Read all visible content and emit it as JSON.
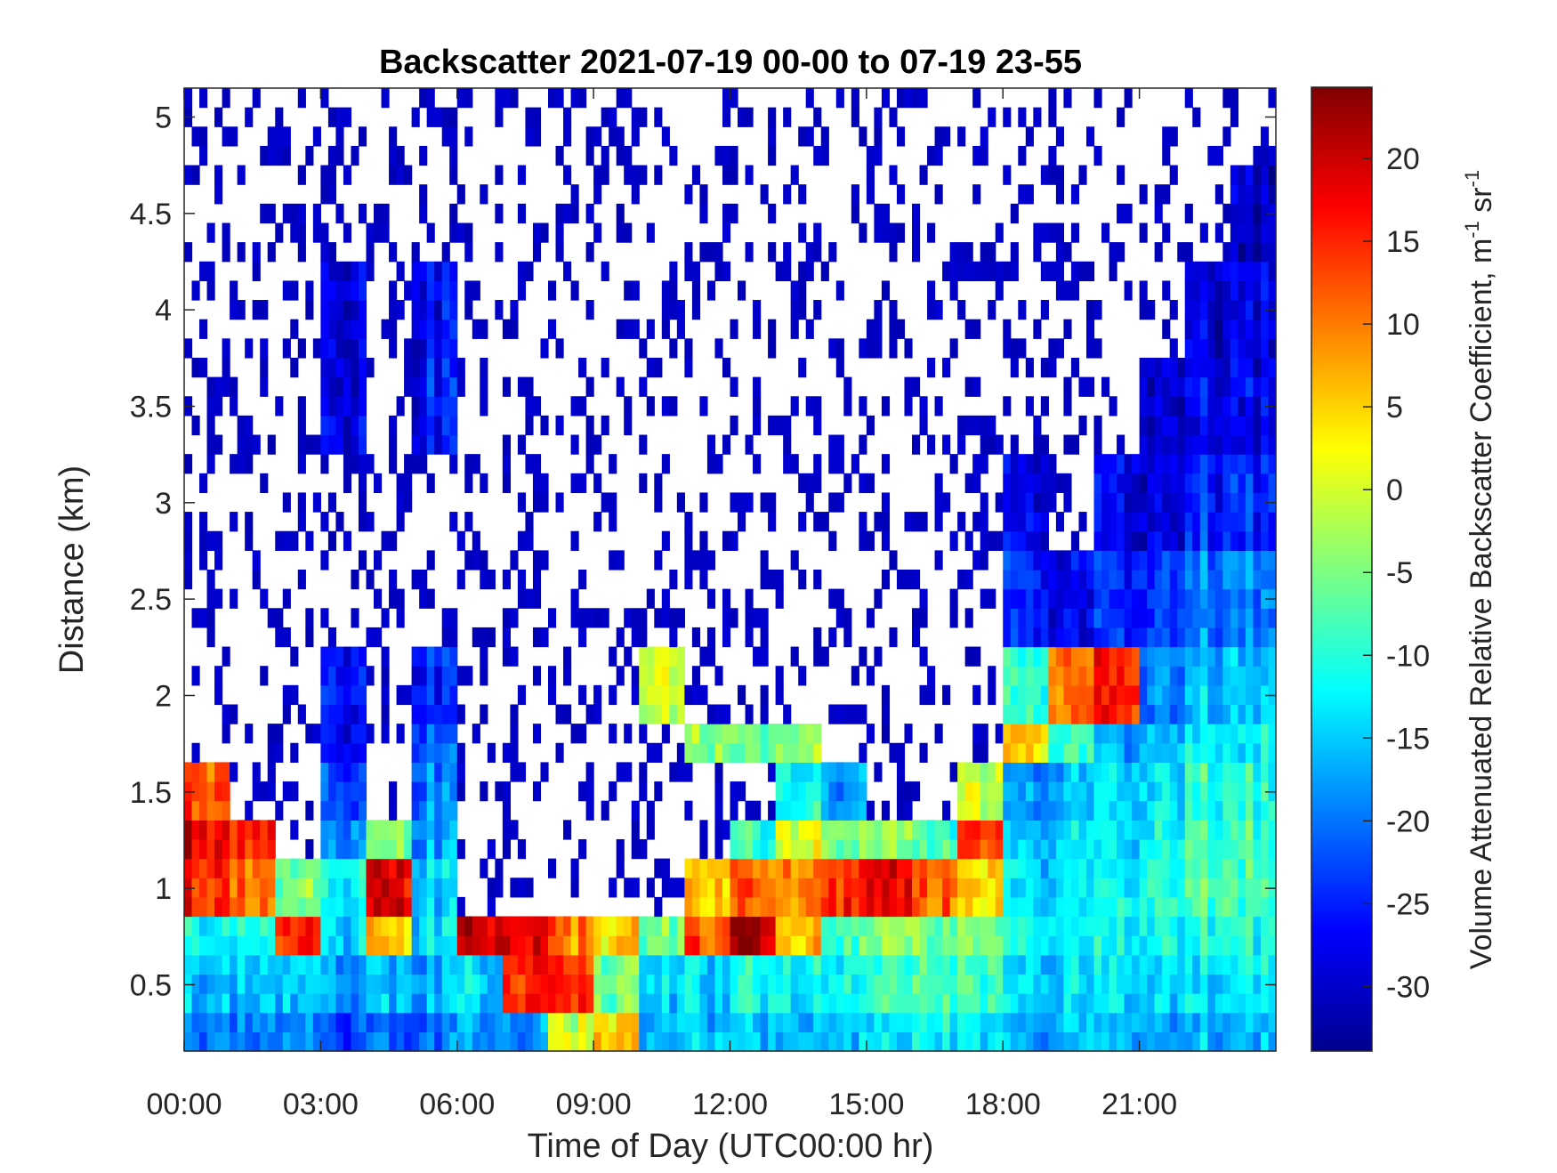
{
  "chart_data": {
    "type": "heatmap",
    "title": "Backscatter 2021-07-19 00-00 to 07-19 23-55",
    "xlabel": "Time of Day (UTC00:00 hr)",
    "ylabel": "Distance (km)",
    "xlim": [
      0,
      24
    ],
    "ylim": [
      0.156,
      5.15
    ],
    "x_ticks": [
      0,
      3,
      6,
      9,
      12,
      15,
      18,
      21
    ],
    "x_tick_labels": [
      "00:00",
      "03:00",
      "06:00",
      "09:00",
      "12:00",
      "15:00",
      "18:00",
      "21:00"
    ],
    "y_ticks": [
      0.5,
      1,
      1.5,
      2,
      2.5,
      3,
      3.5,
      4,
      4.5,
      5
    ],
    "y_tick_labels": [
      "0.5",
      "1",
      "1.5",
      "2",
      "2.5",
      "3",
      "3.5",
      "4",
      "4.5",
      "5"
    ],
    "colorbar": {
      "label_main": "Volume Attenuated Relative Backscatter Coefficient, m",
      "label_sup1": "-1",
      "label_mid": " sr",
      "label_sup2": "-1",
      "colormap": "jet",
      "clim": [
        -33.9,
        24.3
      ],
      "ticks": [
        -30,
        -25,
        -20,
        -15,
        -10,
        -5,
        0,
        5,
        10,
        15,
        20
      ],
      "tick_labels": [
        "-30",
        "-25",
        "-20",
        "-15",
        "-10",
        "-5",
        "0",
        "5",
        "10",
        "15",
        "20"
      ]
    },
    "heights_km": [
      0.25,
      0.5,
      0.75,
      1.0,
      1.25,
      1.5,
      1.75,
      2.0,
      2.5,
      3.0,
      3.5,
      4.0,
      4.5,
      5.0
    ],
    "hours": [
      0,
      1,
      2,
      3,
      4,
      5,
      6,
      7,
      8,
      9,
      10,
      11,
      12,
      13,
      14,
      15,
      16,
      17,
      18,
      19,
      20,
      21,
      22,
      23
    ],
    "note_null": "null = sparse/no-data (white with scattered low returns)",
    "z_by_hour": [
      [
        -20,
        -16,
        -12,
        15,
        18,
        12,
        null,
        null,
        null,
        null,
        null,
        null,
        null,
        null
      ],
      [
        -20,
        -16,
        -12,
        10,
        15,
        null,
        null,
        null,
        null,
        null,
        null,
        null,
        null,
        null
      ],
      [
        -20,
        -15,
        15,
        -5,
        null,
        null,
        null,
        null,
        null,
        null,
        null,
        null,
        null,
        null
      ],
      [
        -22,
        -18,
        -14,
        -12,
        -18,
        -22,
        -26,
        -26,
        null,
        null,
        -28,
        -28,
        null,
        null
      ],
      [
        -22,
        -16,
        5,
        18,
        -5,
        null,
        null,
        null,
        null,
        null,
        null,
        null,
        null,
        null
      ],
      [
        -20,
        -16,
        -14,
        -15,
        -18,
        -20,
        -22,
        -25,
        null,
        null,
        -26,
        -27,
        null,
        null
      ],
      [
        -18,
        -14,
        20,
        null,
        null,
        null,
        null,
        null,
        null,
        null,
        null,
        null,
        null,
        null
      ],
      [
        -18,
        15,
        18,
        null,
        null,
        null,
        null,
        null,
        null,
        null,
        null,
        null,
        null,
        null
      ],
      [
        0,
        15,
        10,
        null,
        null,
        null,
        null,
        null,
        null,
        null,
        null,
        null,
        null,
        null
      ],
      [
        5,
        -5,
        5,
        null,
        null,
        null,
        null,
        null,
        null,
        null,
        null,
        null,
        null,
        null
      ],
      [
        -16,
        -14,
        -5,
        null,
        null,
        null,
        null,
        0,
        null,
        null,
        null,
        null,
        null,
        null
      ],
      [
        -16,
        -14,
        12,
        5,
        null,
        null,
        -5,
        null,
        null,
        null,
        null,
        null,
        null,
        null
      ],
      [
        -16,
        -12,
        20,
        10,
        -10,
        null,
        -8,
        null,
        null,
        null,
        null,
        null,
        null,
        null
      ],
      [
        -16,
        -12,
        5,
        10,
        0,
        -12,
        -5,
        null,
        null,
        null,
        null,
        null,
        null,
        null
      ],
      [
        -16,
        -12,
        -8,
        15,
        -5,
        -18,
        null,
        null,
        null,
        null,
        null,
        null,
        null,
        null
      ],
      [
        -15,
        -10,
        -5,
        18,
        -5,
        null,
        null,
        null,
        null,
        null,
        null,
        null,
        null,
        null
      ],
      [
        -12,
        -8,
        -5,
        12,
        -8,
        null,
        null,
        null,
        null,
        null,
        null,
        null,
        null,
        null
      ],
      [
        -12,
        -8,
        -5,
        5,
        15,
        0,
        null,
        null,
        null,
        null,
        null,
        null,
        null,
        null
      ],
      [
        -16,
        -14,
        -12,
        -14,
        -15,
        -18,
        5,
        -10,
        -25,
        -28,
        null,
        null,
        null,
        null
      ],
      [
        -16,
        -14,
        -12,
        -13,
        -14,
        -16,
        -10,
        10,
        -28,
        null,
        null,
        null,
        null,
        null
      ],
      [
        -16,
        -14,
        -12,
        -12,
        -14,
        -14,
        -18,
        15,
        -25,
        -28,
        null,
        null,
        null,
        null
      ],
      [
        -16,
        -13,
        -10,
        -8,
        -10,
        -12,
        -14,
        -18,
        -22,
        -27,
        -28,
        null,
        null,
        null
      ],
      [
        -16,
        -13,
        -10,
        -8,
        -8,
        -10,
        -12,
        -16,
        -20,
        -25,
        -28,
        -29,
        null,
        null
      ],
      [
        -16,
        -12,
        -10,
        -8,
        -8,
        -10,
        -12,
        -15,
        -19,
        -24,
        -27,
        -28,
        -30,
        null
      ]
    ]
  }
}
